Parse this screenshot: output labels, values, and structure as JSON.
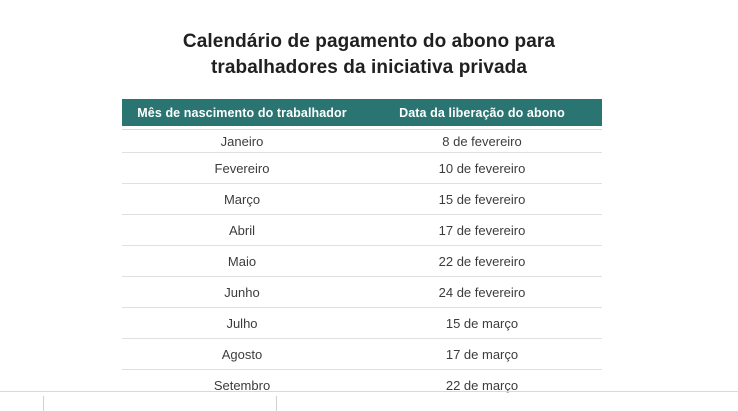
{
  "title": {
    "text": "Calendário de pagamento do abono para trabalhadores da iniciativa privada"
  },
  "table": {
    "header": {
      "col1": "Mês de nascimento do trabalhador",
      "col2": "Data da liberação do abono"
    },
    "rows": [
      [
        "Janeiro",
        "8 de fevereiro"
      ],
      [
        "Fevereiro",
        "10 de fevereiro"
      ],
      [
        "Março",
        "15 de fevereiro"
      ],
      [
        "Abril",
        "17 de fevereiro"
      ],
      [
        "Maio",
        "22 de fevereiro"
      ],
      [
        "Junho",
        "24 de fevereiro"
      ],
      [
        "Julho",
        "15 de março"
      ],
      [
        "Agosto",
        "17 de março"
      ],
      [
        "Setembro",
        "22 de março"
      ]
    ]
  },
  "colors": {
    "header_background": "#2a7472",
    "header_text": "#ffffff",
    "title_text": "#202020",
    "body_text": "#3c3c3c",
    "row_separator": "#e0e0e0",
    "header_underline": "#c9e0df",
    "bottom_divider": "#d9d9d9"
  },
  "chart_data": {
    "type": "table",
    "title": "Calendário de pagamento do abono para trabalhadores da iniciativa privada",
    "columns": [
      "Mês de nascimento do trabalhador",
      "Data da liberação do abono"
    ],
    "rows": [
      [
        "Janeiro",
        "8 de fevereiro"
      ],
      [
        "Fevereiro",
        "10 de fevereiro"
      ],
      [
        "Março",
        "15 de fevereiro"
      ],
      [
        "Abril",
        "17 de fevereiro"
      ],
      [
        "Maio",
        "22 de fevereiro"
      ],
      [
        "Junho",
        "24 de fevereiro"
      ],
      [
        "Julho",
        "15 de março"
      ],
      [
        "Agosto",
        "17 de março"
      ],
      [
        "Setembro",
        "22 de março"
      ]
    ],
    "layout": {
      "header_style": "teal band, white bold centered text",
      "cell_alignment": "center",
      "grid": "horizontal separators only"
    }
  }
}
